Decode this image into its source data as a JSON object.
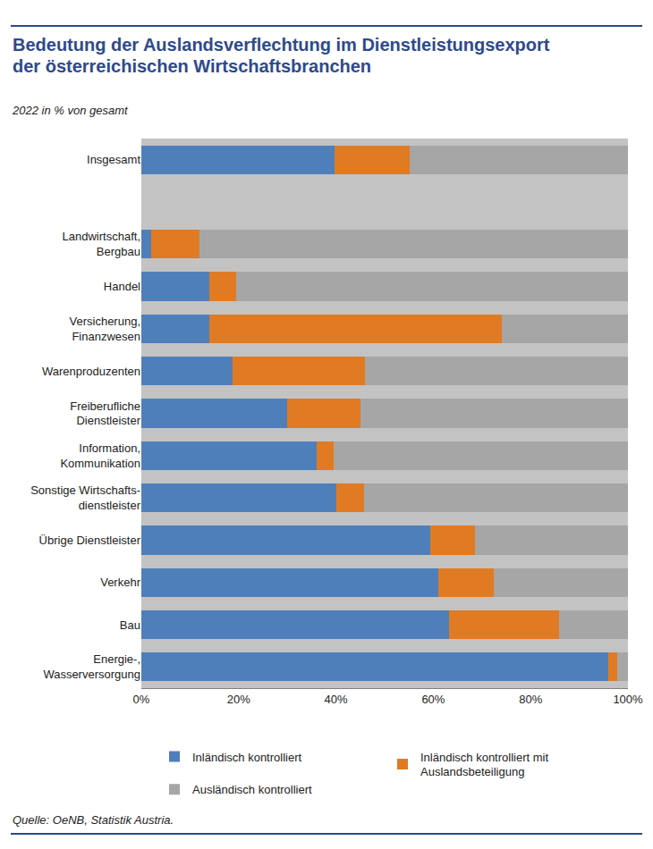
{
  "chart_data": {
    "type": "bar",
    "orientation": "horizontal",
    "stacked": true,
    "title": "Bedeutung der Auslandsverflechtung im Dienstleistungsexport\nder österreichischen Wirtschaftsbranchen",
    "subtitle": "2022 in % von gesamt",
    "source": "Quelle: OeNB, Statistik Austria.",
    "categories": [
      "Insgesamt",
      null,
      "Landwirtschaft,\nBergbau",
      "Handel",
      "Versicherung,\nFinanzwesen",
      "Warenproduzenten",
      "Freiberufliche\nDienstleister",
      "Information,\nKommunikation",
      "Sonstige Wirtschafts-\ndienstleister",
      "Übrige Dienstleister",
      "Verkehr",
      "Bau",
      "Energie-,\nWasserversorgung"
    ],
    "series": [
      {
        "name": "Inländisch kontrolliert",
        "color": "#4f7fba",
        "values": [
          39.7,
          null,
          2,
          14,
          14,
          18.7,
          30,
          36,
          40,
          59.3,
          61,
          63.3,
          96
        ]
      },
      {
        "name": "Inländisch kontrolliert mit\nAuslandsbeteiligung",
        "color": "#e07b24",
        "values": [
          15.5,
          null,
          10,
          5.5,
          60,
          27.3,
          15,
          3.5,
          5.8,
          9.2,
          11.5,
          22.5,
          1.8
        ]
      },
      {
        "name": "Ausländisch kontrolliert",
        "color": "#a6a6a6",
        "values": [
          44.8,
          null,
          88,
          80.5,
          26,
          54,
          55,
          60.5,
          54.2,
          31.5,
          27.5,
          14.2,
          2.2
        ]
      }
    ],
    "xlim": [
      0,
      100
    ],
    "xticks": [
      {
        "value": 0,
        "label": "0%"
      },
      {
        "value": 20,
        "label": "20%"
      },
      {
        "value": 40,
        "label": "40%"
      },
      {
        "value": 60,
        "label": "60%"
      },
      {
        "value": 80,
        "label": "80%"
      },
      {
        "value": 100,
        "label": "100%"
      }
    ],
    "grid": false,
    "legend": "bottom"
  }
}
